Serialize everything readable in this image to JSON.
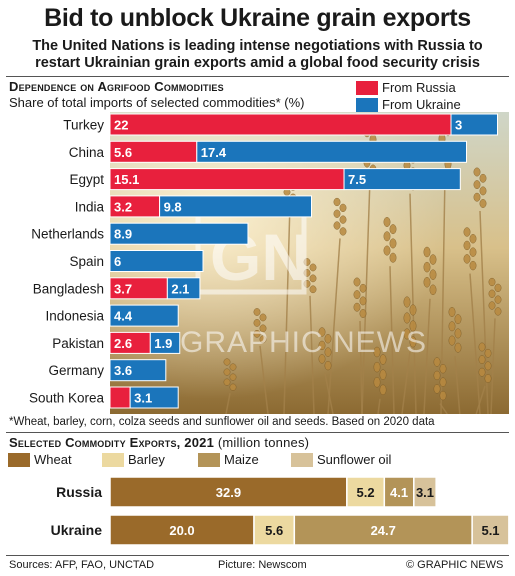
{
  "headline": "Bid to unblock Ukraine grain exports",
  "subheadline": "The United Nations is leading intense negotiations with Russia to restart Ukrainian grain exports amid a global food security crisis",
  "section1": {
    "title": "Dependence on Agrifood Commodities",
    "subtitle": "Share of total imports of selected commodities* (%)"
  },
  "colors": {
    "russia": "#e8203d",
    "ukraine": "#1b75bb",
    "wheat": "#9a6a2a",
    "barley": "#ecd9a0",
    "maize": "#b39458",
    "sunflower_oil": "#d7c29a"
  },
  "chart_data": [
    {
      "type": "bar",
      "orientation": "horizontal",
      "stacked": true,
      "categories": [
        "Turkey",
        "China",
        "Egypt",
        "India",
        "Netherlands",
        "Spain",
        "Bangladesh",
        "Indonesia",
        "Pakistan",
        "Germany",
        "South Korea"
      ],
      "series": [
        {
          "name": "From Russia",
          "values": [
            22,
            5.6,
            15.1,
            3.2,
            null,
            null,
            3.7,
            null,
            2.6,
            null,
            1.3
          ]
        },
        {
          "name": "From Ukraine",
          "values": [
            3,
            17.4,
            7.5,
            9.8,
            8.9,
            6,
            2.1,
            4.4,
            1.9,
            3.6,
            3.1
          ]
        }
      ],
      "labels": {
        "russia": [
          "22",
          "5.6",
          "15.1",
          "3.2",
          "",
          "",
          "3.7",
          "",
          "2.6",
          "",
          ""
        ],
        "ukraine": [
          "3",
          "17.4",
          "7.5",
          "9.8",
          "8.9",
          "6",
          "2.1",
          "4.4",
          "1.9",
          "3.6",
          "3.1"
        ]
      },
      "legend": [
        "From Russia",
        "From Ukraine"
      ],
      "legend_position": "top-right"
    },
    {
      "type": "bar",
      "orientation": "horizontal",
      "stacked": true,
      "title": "Selected Commodity Exports, 2021",
      "unit": "(million tonnes)",
      "categories": [
        "Russia",
        "Ukraine"
      ],
      "series": [
        {
          "name": "Wheat",
          "values": [
            32.9,
            20.0
          ]
        },
        {
          "name": "Barley",
          "values": [
            5.2,
            5.6
          ]
        },
        {
          "name": "Maize",
          "values": [
            4.1,
            24.7
          ]
        },
        {
          "name": "Sunflower oil",
          "values": [
            3.1,
            5.1
          ]
        }
      ],
      "labels": [
        [
          "32.9",
          "5.2",
          "4.1",
          "3.1"
        ],
        [
          "20.0",
          "5.6",
          "24.7",
          "5.1"
        ]
      ],
      "legend": [
        "Wheat",
        "Barley",
        "Maize",
        "Sunflower oil"
      ],
      "legend_position": "top"
    }
  ],
  "footnote": "*Wheat, barley, corn, colza seeds and sunflower oil and seeds. Based on 2020 data",
  "watermark": "GRAPHIC NEWS",
  "footer": {
    "sources": "Sources: AFP, FAO, UNCTAD",
    "picture": "Picture: Newscom",
    "credit": "© GRAPHIC NEWS"
  }
}
